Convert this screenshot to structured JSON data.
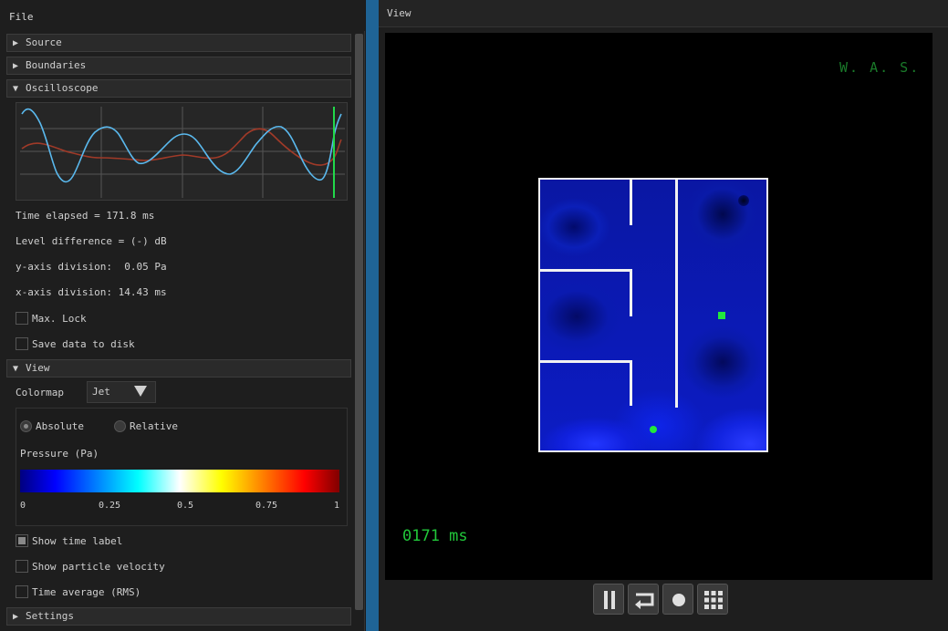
{
  "menu": {
    "file_label": "File"
  },
  "left": {
    "sections": {
      "source": "Source",
      "boundaries": "Boundaries",
      "oscilloscope": "Oscilloscope",
      "view": "View",
      "settings": "Settings"
    },
    "oscilloscope": {
      "time_elapsed": "Time elapsed = 171.8 ms",
      "level_difference": "Level difference = (-) dB",
      "y_axis_division": "y-axis division:  0.05 Pa",
      "x_axis_division": "x-axis division: 14.43 ms",
      "max_lock": {
        "label": "Max. Lock",
        "checked": false
      },
      "save_data": {
        "label": "Save data to disk",
        "checked": false
      }
    },
    "view": {
      "colormap_label": "Colormap",
      "colormap_value": "Jet",
      "radio_absolute": {
        "label": "Absolute",
        "selected": true
      },
      "radio_relative": {
        "label": "Relative",
        "selected": false
      },
      "pressure_label": "Pressure (Pa)",
      "ticks": [
        "0",
        "0.25",
        "0.5",
        "0.75",
        "1"
      ],
      "show_time_label": {
        "label": "Show time label",
        "checked": true
      },
      "show_particle_velocity": {
        "label": "Show particle velocity",
        "checked": false
      },
      "time_average": {
        "label": "Time average (RMS)",
        "checked": false
      }
    }
  },
  "right": {
    "title": "View",
    "overlay_top_right": "W. A. S.",
    "overlay_time": "0171 ms",
    "controls": [
      "pause",
      "reset",
      "record",
      "grid"
    ]
  },
  "colors": {
    "accent_divider": "#1f6496",
    "trace_blue": "#5ab9ee",
    "trace_red": "#a03a28",
    "cursor_green": "#22d84a",
    "marker_green": "#22e83c"
  },
  "icons": {
    "section_collapsed": "triangle-right-icon",
    "section_expanded": "triangle-down-icon"
  }
}
